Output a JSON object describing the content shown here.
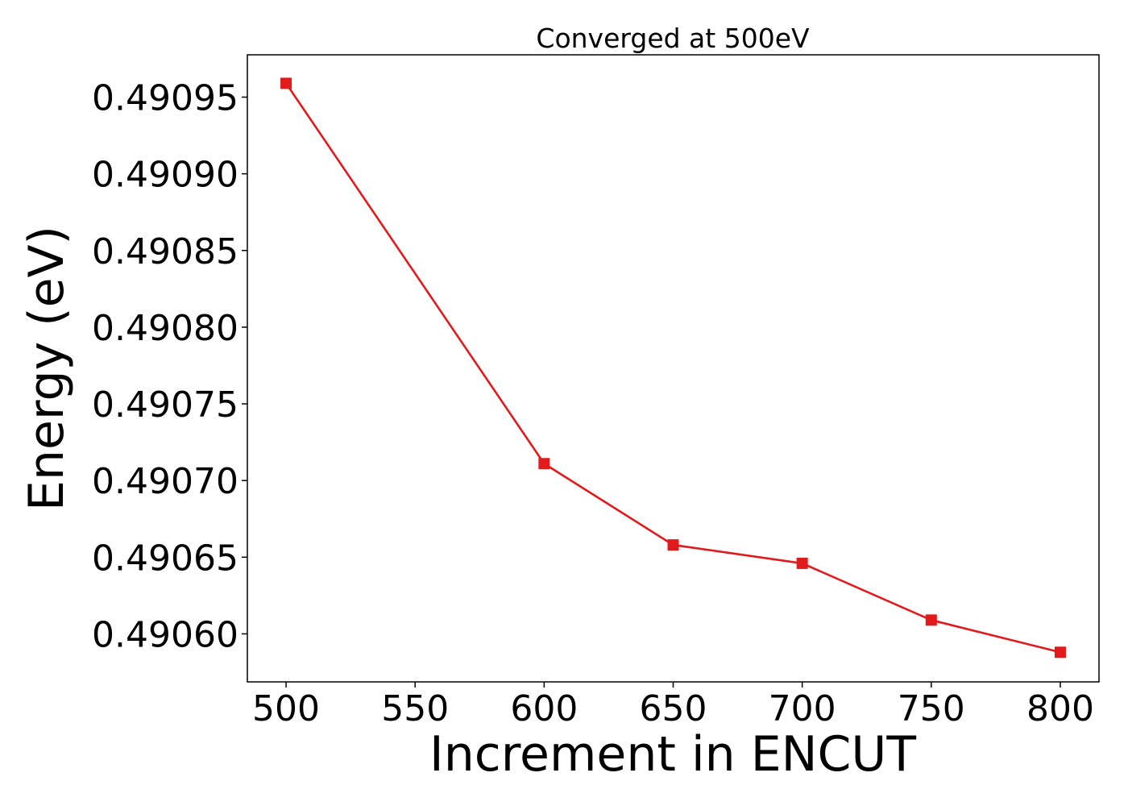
{
  "chart_data": {
    "type": "line",
    "title": "Converged at 500eV",
    "xlabel": "Increment in ENCUT",
    "ylabel": "Energy (eV)",
    "x": [
      500,
      600,
      650,
      700,
      750,
      800
    ],
    "series": [
      {
        "values": [
          0.490959,
          0.490711,
          0.490658,
          0.490646,
          0.490609,
          0.490588
        ],
        "color": "#e31a1c",
        "marker": "square"
      }
    ],
    "x_ticks": [
      500,
      550,
      600,
      650,
      700,
      750,
      800
    ],
    "x_tick_labels": [
      "500",
      "550",
      "600",
      "650",
      "700",
      "750",
      "800"
    ],
    "y_ticks": [
      0.4906,
      0.49065,
      0.4907,
      0.49075,
      0.4908,
      0.49085,
      0.4909,
      0.49095
    ],
    "y_tick_labels": [
      "0.49060",
      "0.49065",
      "0.49070",
      "0.49075",
      "0.49080",
      "0.49085",
      "0.49090",
      "0.49095"
    ],
    "xlim": [
      485,
      815
    ],
    "ylim": [
      0.4905687,
      0.4909776
    ],
    "grid": false,
    "legend": "none"
  }
}
